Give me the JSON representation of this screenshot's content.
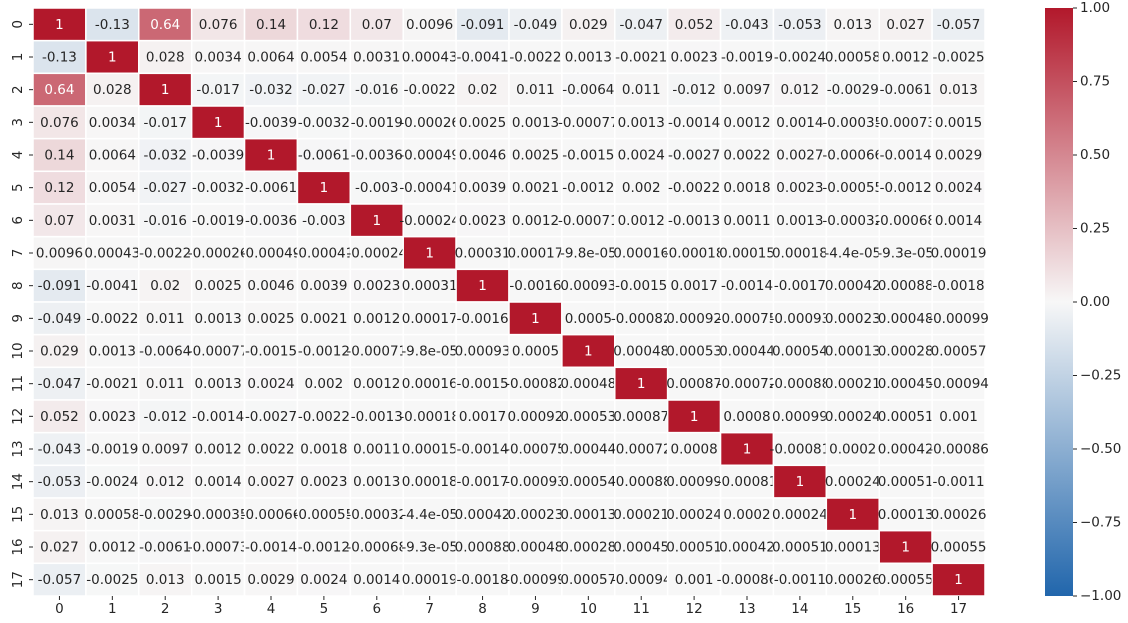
{
  "chart_data": {
    "type": "heatmap",
    "labels": [
      "0",
      "1",
      "2",
      "3",
      "4",
      "5",
      "6",
      "7",
      "8",
      "9",
      "10",
      "11",
      "12",
      "13",
      "14",
      "15",
      "16",
      "17"
    ],
    "cells": [
      [
        "1",
        "-0.13",
        "0.64",
        "0.076",
        "0.14",
        "0.12",
        "0.07",
        "0.0096",
        "-0.091",
        "-0.049",
        "0.029",
        "-0.047",
        "0.052",
        "-0.043",
        "-0.053",
        "0.013",
        "0.027",
        "-0.057"
      ],
      [
        "-0.13",
        "1",
        "0.028",
        "0.0034",
        "0.0064",
        "0.0054",
        "0.0031",
        "0.00043",
        "-0.0041",
        "-0.0022",
        "0.0013",
        "-0.0021",
        "0.0023",
        "-0.0019",
        "-0.0024",
        "0.00058",
        "0.0012",
        "-0.0025"
      ],
      [
        "0.64",
        "0.028",
        "1",
        "-0.017",
        "-0.032",
        "-0.027",
        "-0.016",
        "-0.0022",
        "0.02",
        "0.011",
        "-0.0064",
        "0.011",
        "-0.012",
        "0.0097",
        "0.012",
        "-0.0029",
        "-0.0061",
        "0.013"
      ],
      [
        "0.076",
        "0.0034",
        "-0.017",
        "1",
        "-0.0039",
        "-0.0032",
        "-0.0019",
        "-0.00026",
        "0.0025",
        "0.0013",
        "-0.00077",
        "0.0013",
        "-0.0014",
        "0.0012",
        "0.0014",
        "-0.00035",
        "-0.00073",
        "0.0015"
      ],
      [
        "0.14",
        "0.0064",
        "-0.032",
        "-0.0039",
        "1",
        "-0.0061",
        "-0.0036",
        "-0.00049",
        "0.0046",
        "0.0025",
        "-0.0015",
        "0.0024",
        "-0.0027",
        "0.0022",
        "0.0027",
        "-0.00066",
        "-0.0014",
        "0.0029"
      ],
      [
        "0.12",
        "0.0054",
        "-0.027",
        "-0.0032",
        "-0.0061",
        "1",
        "-0.003",
        "-0.00041",
        "0.0039",
        "0.0021",
        "-0.0012",
        "0.002",
        "-0.0022",
        "0.0018",
        "0.0023",
        "-0.00055",
        "-0.0012",
        "0.0024"
      ],
      [
        "0.07",
        "0.0031",
        "-0.016",
        "-0.0019",
        "-0.0036",
        "-0.003",
        "1",
        "-0.00024",
        "0.0023",
        "0.0012",
        "-0.00071",
        "0.0012",
        "-0.0013",
        "0.0011",
        "0.0013",
        "-0.00032",
        "-0.00068",
        "0.0014"
      ],
      [
        "0.0096",
        "0.00043",
        "-0.0022",
        "-0.00026",
        "-0.00049",
        "-0.00041",
        "-0.00024",
        "1",
        "0.00031",
        "0.00017",
        "-9.8e-05",
        "0.00016",
        "-0.00018",
        "0.00015",
        "0.00018",
        "-4.4e-05",
        "-9.3e-05",
        "0.00019"
      ],
      [
        "-0.091",
        "-0.0041",
        "0.02",
        "0.0025",
        "0.0046",
        "0.0039",
        "0.0023",
        "0.00031",
        "1",
        "-0.0016",
        "0.00093",
        "-0.0015",
        "0.0017",
        "-0.0014",
        "-0.0017",
        "0.00042",
        "0.00088",
        "-0.0018"
      ],
      [
        "-0.049",
        "-0.0022",
        "0.011",
        "0.0013",
        "0.0025",
        "0.0021",
        "0.0012",
        "0.00017",
        "-0.0016",
        "1",
        "0.0005",
        "-0.00082",
        "0.00092",
        "-0.00075",
        "-0.00093",
        "0.00023",
        "0.00048",
        "-0.00099"
      ],
      [
        "0.029",
        "0.0013",
        "-0.0064",
        "-0.00077",
        "-0.0015",
        "-0.0012",
        "-0.00071",
        "-9.8e-05",
        "0.00093",
        "0.0005",
        "1",
        "0.00048",
        "0.00053",
        "0.00044",
        "0.00054",
        "0.00013",
        "0.00028",
        "0.00057"
      ],
      [
        "-0.047",
        "-0.0021",
        "0.011",
        "0.0013",
        "0.0024",
        "0.002",
        "0.0012",
        "0.00016",
        "-0.0015",
        "-0.00082",
        "0.00048",
        "1",
        "0.00087",
        "-0.00072",
        "-0.00088",
        "0.00021",
        "0.00045",
        "-0.00094"
      ],
      [
        "0.052",
        "0.0023",
        "-0.012",
        "-0.0014",
        "-0.0027",
        "-0.0022",
        "-0.0013",
        "-0.00018",
        "0.0017",
        "0.00092",
        "0.00053",
        "0.00087",
        "1",
        "0.0008",
        "0.00099",
        "0.00024",
        "0.00051",
        "0.001"
      ],
      [
        "-0.043",
        "-0.0019",
        "0.0097",
        "0.0012",
        "0.0022",
        "0.0018",
        "0.0011",
        "0.00015",
        "-0.0014",
        "-0.00075",
        "0.00044",
        "-0.00072",
        "0.0008",
        "1",
        "-0.00081",
        "0.0002",
        "0.00042",
        "-0.00086"
      ],
      [
        "-0.053",
        "-0.0024",
        "0.012",
        "0.0014",
        "0.0027",
        "0.0023",
        "0.0013",
        "0.00018",
        "-0.0017",
        "-0.00093",
        "0.00054",
        "-0.00088",
        "0.00099",
        "-0.00081",
        "1",
        "0.00024",
        "0.00051",
        "-0.0011"
      ],
      [
        "0.013",
        "0.00058",
        "-0.0029",
        "-0.00035",
        "-0.00066",
        "-0.00055",
        "-0.00032",
        "-4.4e-05",
        "0.00042",
        "0.00023",
        "0.00013",
        "0.00021",
        "0.00024",
        "0.0002",
        "0.00024",
        "1",
        "0.00013",
        "0.00026"
      ],
      [
        "0.027",
        "0.0012",
        "-0.0061",
        "-0.00073",
        "-0.0014",
        "-0.0012",
        "-0.00068",
        "-9.3e-05",
        "0.00088",
        "0.00048",
        "0.00028",
        "0.00045",
        "0.00051",
        "0.00042",
        "0.00051",
        "0.00013",
        "1",
        "0.00055"
      ],
      [
        "-0.057",
        "-0.0025",
        "0.013",
        "0.0015",
        "0.0029",
        "0.0024",
        "0.0014",
        "0.00019",
        "-0.0018",
        "-0.00099",
        "0.00057",
        "-0.00094",
        "0.001",
        "-0.00086",
        "-0.0011",
        "0.00026",
        "0.00055",
        "1"
      ]
    ],
    "vmin": -1,
    "vmax": 1,
    "colorbar_ticks": [
      "1.00",
      "0.75",
      "0.50",
      "0.25",
      "0.00",
      "−0.25",
      "−0.50",
      "−0.75",
      "−1.00"
    ],
    "colormap": {
      "negative": "#2166ac",
      "center": "#f7f7f7",
      "positive": "#b2182b"
    },
    "grid": false,
    "title": "",
    "xlabel": "",
    "ylabel": ""
  }
}
